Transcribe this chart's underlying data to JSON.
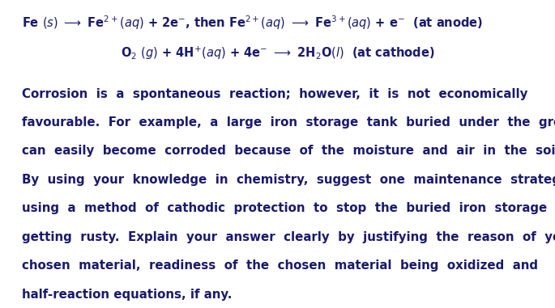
{
  "background_color": "#ffffff",
  "figsize": [
    6.85,
    3.81
  ],
  "dpi": 100,
  "text_color": "#1a1a6e",
  "font_size_eq": 10.5,
  "font_size_para": 10.8,
  "eq1": "Fe $\\it{(s)}$ $\\longrightarrow$ Fe$^{2+}$$\\it{(aq)}$ + 2e$^{-}$, then Fe$^{2+}$$\\it{(aq)}$ $\\longrightarrow$ Fe$^{3+}$$\\it{(aq)}$ + e$^{-}$  (at anode)",
  "eq2": "O$_2$ $\\it{(g)}$ + 4H$^{+}$$\\it{(aq)}$ + 4e$^{-}$ $\\longrightarrow$ 2H$_2$O$\\it{(l)}$  (at cathode)",
  "para_lines": [
    "Corrosion  is  a  spontaneous  reaction;  however,  it  is  not  economically",
    "favourable.  For  example,  a  large  iron  storage  tank  buried  under  the  ground",
    "can  easily  become  corroded  because  of  the  moisture  and  air  in  the  soil.",
    "By  using  your  knowledge  in  chemistry,  suggest  one  maintenance  strategy  by",
    "using  a  method  of  cathodic  protection  to  stop  the  buried  iron  storage  tank  from",
    "getting  rusty.  Explain  your  answer  clearly  by  justifying  the  reason  of  your",
    "chosen  material,  readiness  of  the  chosen  material  being  oxidized  and",
    "half-reaction equations, if any."
  ]
}
